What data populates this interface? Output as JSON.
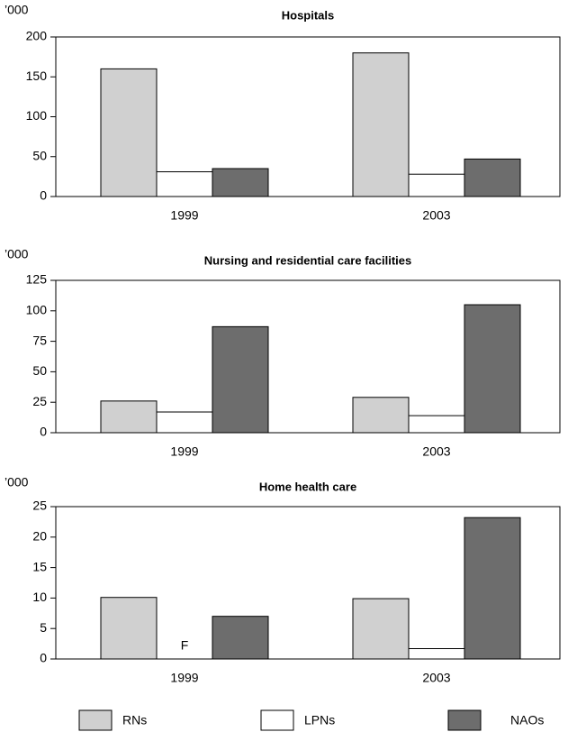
{
  "chart_data": [
    {
      "type": "bar",
      "title": "Hospitals",
      "unit_label": "’000",
      "categories": [
        "1999",
        "2003"
      ],
      "series": [
        {
          "name": "RNs",
          "color": "#d0d0d0",
          "values": [
            160,
            180
          ]
        },
        {
          "name": "LPNs",
          "color": "#ffffff",
          "values": [
            31,
            28
          ]
        },
        {
          "name": "NAOs",
          "color": "#6d6d6d",
          "values": [
            35,
            47
          ]
        }
      ],
      "ylim": [
        0,
        200
      ],
      "yticks": [
        0,
        50,
        100,
        150,
        200
      ]
    },
    {
      "type": "bar",
      "title": "Nursing and residential care facilities",
      "unit_label": "’000",
      "categories": [
        "1999",
        "2003"
      ],
      "series": [
        {
          "name": "RNs",
          "color": "#d0d0d0",
          "values": [
            26,
            29
          ]
        },
        {
          "name": "LPNs",
          "color": "#ffffff",
          "values": [
            17,
            14
          ]
        },
        {
          "name": "NAOs",
          "color": "#6d6d6d",
          "values": [
            87,
            105
          ]
        }
      ],
      "ylim": [
        0,
        125
      ],
      "yticks": [
        0,
        25,
        50,
        75,
        100,
        125
      ]
    },
    {
      "type": "bar",
      "title": "Home health care",
      "unit_label": "’000",
      "categories": [
        "1999",
        "2003"
      ],
      "series": [
        {
          "name": "RNs",
          "color": "#d0d0d0",
          "values": [
            10.1,
            9.9
          ]
        },
        {
          "name": "LPNs",
          "color": "#ffffff",
          "values": [
            null,
            1.7
          ],
          "value_labels": [
            "F",
            null
          ]
        },
        {
          "name": "NAOs",
          "color": "#6d6d6d",
          "values": [
            7,
            23.2
          ]
        }
      ],
      "ylim": [
        0,
        25
      ],
      "yticks": [
        0,
        5,
        10,
        15,
        20,
        25
      ]
    }
  ]
}
